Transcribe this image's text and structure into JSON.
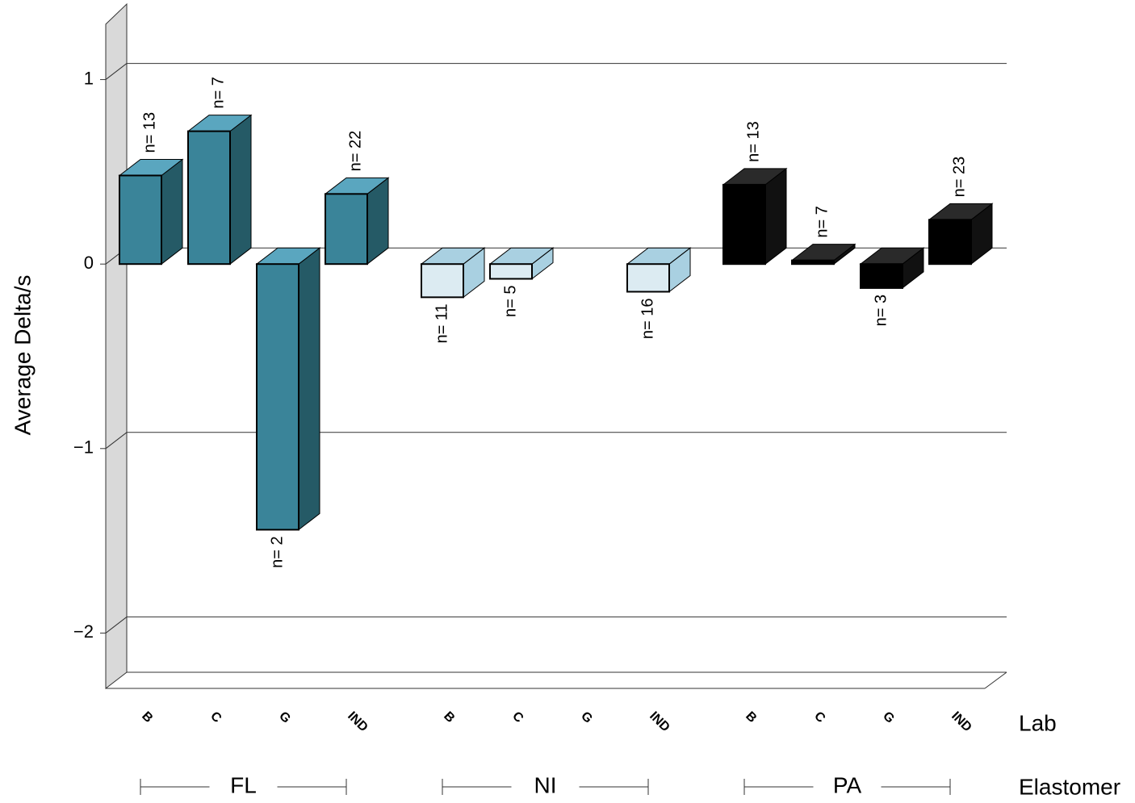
{
  "chart_data": {
    "type": "bar3d",
    "y_label": "Average Delta/s",
    "x_label": "Lab",
    "group_label": "Elastomer",
    "categories": [
      "B",
      "C",
      "G",
      "IND"
    ],
    "series": [
      {
        "name": "FL",
        "color": "#3a8499",
        "values": [
          0.48,
          0.72,
          -1.44,
          0.38
        ],
        "n_labels": [
          "n= 13",
          "n= 7",
          "n= 2",
          "n= 22"
        ]
      },
      {
        "name": "NI",
        "color": "#dcebf2",
        "values": [
          -0.18,
          -0.08,
          null,
          -0.15
        ],
        "n_labels": [
          "n= 11",
          "n= 5",
          null,
          "n= 16"
        ]
      },
      {
        "name": "PA",
        "color": "#000000",
        "values": [
          0.43,
          0.02,
          -0.13,
          0.24
        ],
        "n_labels": [
          "n= 13",
          "n= 7",
          "n= 3",
          "n= 23"
        ]
      }
    ],
    "ylim": [
      -2.3,
      1.3
    ],
    "yticks": [
      {
        "value": -2,
        "label": "−2"
      },
      {
        "value": -1,
        "label": "−1"
      },
      0,
      1
    ],
    "grid": true
  }
}
